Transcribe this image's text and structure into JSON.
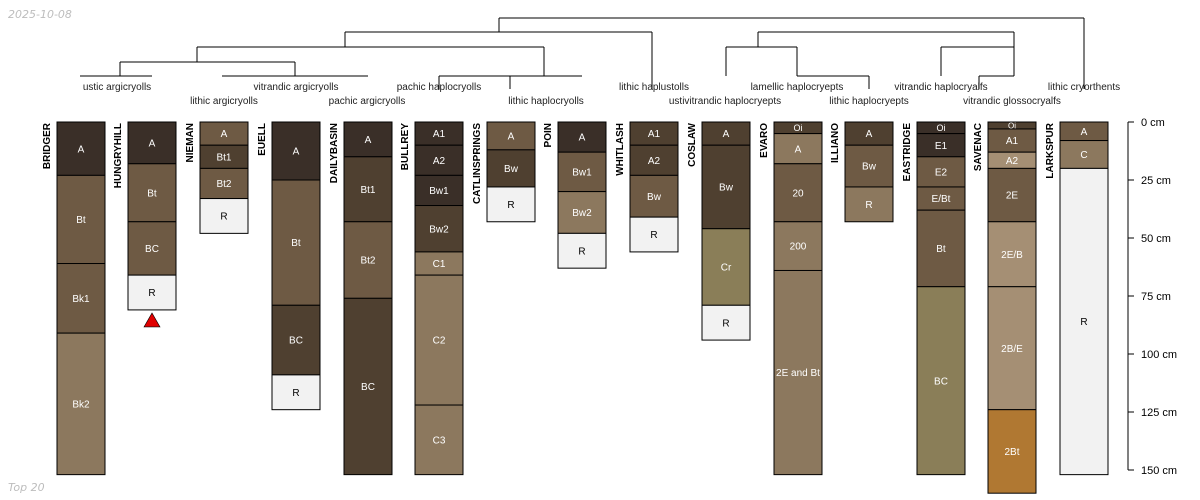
{
  "header": {
    "date": "2025-10-08"
  },
  "footer": {
    "label": "Top 20"
  },
  "colors": {
    "dark": "#3a2f28",
    "darkbrown": "#4f4030",
    "medbrown": "#6e5a44",
    "tan": "#8c785e",
    "lighttan": "#a58f74",
    "olive": "#8a7e58",
    "orange": "#b07832",
    "rock": "#f2f2f2"
  },
  "depth_axis": {
    "unit": "cm",
    "max": 150,
    "ticks": [
      {
        "value": 0,
        "label": "0 cm"
      },
      {
        "value": 25,
        "label": "25 cm"
      },
      {
        "value": 50,
        "label": "50 cm"
      },
      {
        "value": 75,
        "label": "75 cm"
      },
      {
        "value": 100,
        "label": "100 cm"
      },
      {
        "value": 125,
        "label": "125 cm"
      },
      {
        "value": 150,
        "label": "150 cm"
      }
    ]
  },
  "taxa": [
    {
      "text": "ustic argicryolls"
    },
    {
      "text": "lithic argicryolls"
    },
    {
      "text": "vitrandic argicryolls"
    },
    {
      "text": "pachic argicryolls"
    },
    {
      "text": "pachic haplocryolls"
    },
    {
      "text": "lithic haplocryolls"
    },
    {
      "text": "lithic haplustolls"
    },
    {
      "text": "ustivitrandic haplocryepts"
    },
    {
      "text": "lamellic haplocryepts"
    },
    {
      "text": "lithic haplocryepts"
    },
    {
      "text": "vitrandic haplocryalfs"
    },
    {
      "text": "vitrandic glossocryalfs"
    },
    {
      "text": "lithic cryorthents"
    }
  ],
  "profiles": [
    {
      "name": "BRIDGER",
      "horizons": [
        {
          "name": "A",
          "top": 0,
          "bottom": 23,
          "color": "#3a2f28"
        },
        {
          "name": "Bt",
          "top": 23,
          "bottom": 61,
          "color": "#6e5a44"
        },
        {
          "name": "Bk1",
          "top": 61,
          "bottom": 91,
          "color": "#6e5a44"
        },
        {
          "name": "Bk2",
          "top": 91,
          "bottom": 152,
          "color": "#8c785e"
        }
      ]
    },
    {
      "name": "HUNGRYHILL",
      "marker": true,
      "horizons": [
        {
          "name": "A",
          "top": 0,
          "bottom": 18,
          "color": "#3a2f28"
        },
        {
          "name": "Bt",
          "top": 18,
          "bottom": 43,
          "color": "#6e5a44"
        },
        {
          "name": "BC",
          "top": 43,
          "bottom": 66,
          "color": "#6e5a44"
        },
        {
          "name": "R",
          "top": 66,
          "bottom": 81,
          "color": "#f2f2f2"
        }
      ]
    },
    {
      "name": "NIEMAN",
      "horizons": [
        {
          "name": "A",
          "top": 0,
          "bottom": 10,
          "color": "#6e5a44"
        },
        {
          "name": "Bt1",
          "top": 10,
          "bottom": 20,
          "color": "#4f4030"
        },
        {
          "name": "Bt2",
          "top": 20,
          "bottom": 33,
          "color": "#6e5a44"
        },
        {
          "name": "R",
          "top": 33,
          "bottom": 48,
          "color": "#f2f2f2"
        }
      ]
    },
    {
      "name": "EUELL",
      "horizons": [
        {
          "name": "A",
          "top": 0,
          "bottom": 25,
          "color": "#3a2f28"
        },
        {
          "name": "Bt",
          "top": 25,
          "bottom": 79,
          "color": "#6e5a44"
        },
        {
          "name": "BC",
          "top": 79,
          "bottom": 109,
          "color": "#4f4030"
        },
        {
          "name": "R",
          "top": 109,
          "bottom": 124,
          "color": "#f2f2f2"
        }
      ]
    },
    {
      "name": "DAILYBASIN",
      "horizons": [
        {
          "name": "A",
          "top": 0,
          "bottom": 15,
          "color": "#3a2f28"
        },
        {
          "name": "Bt1",
          "top": 15,
          "bottom": 43,
          "color": "#4f4030"
        },
        {
          "name": "Bt2",
          "top": 43,
          "bottom": 76,
          "color": "#6e5a44"
        },
        {
          "name": "BC",
          "top": 76,
          "bottom": 152,
          "color": "#4f4030"
        }
      ]
    },
    {
      "name": "BULLREY",
      "horizons": [
        {
          "name": "A1",
          "top": 0,
          "bottom": 10,
          "color": "#3a2f28"
        },
        {
          "name": "A2",
          "top": 10,
          "bottom": 23,
          "color": "#3a2f28"
        },
        {
          "name": "Bw1",
          "top": 23,
          "bottom": 36,
          "color": "#3a2f28"
        },
        {
          "name": "Bw2",
          "top": 36,
          "bottom": 56,
          "color": "#4f4030"
        },
        {
          "name": "C1",
          "top": 56,
          "bottom": 66,
          "color": "#8c785e"
        },
        {
          "name": "C2",
          "top": 66,
          "bottom": 122,
          "color": "#8c785e"
        },
        {
          "name": "C3",
          "top": 122,
          "bottom": 152,
          "color": "#8c785e"
        }
      ]
    },
    {
      "name": "CATLINSPRINGS",
      "horizons": [
        {
          "name": "A",
          "top": 0,
          "bottom": 12,
          "color": "#6e5a44"
        },
        {
          "name": "Bw",
          "top": 12,
          "bottom": 28,
          "color": "#4f4030"
        },
        {
          "name": "R",
          "top": 28,
          "bottom": 43,
          "color": "#f2f2f2"
        }
      ]
    },
    {
      "name": "POIN",
      "horizons": [
        {
          "name": "A",
          "top": 0,
          "bottom": 13,
          "color": "#3a2f28"
        },
        {
          "name": "Bw1",
          "top": 13,
          "bottom": 30,
          "color": "#6e5a44"
        },
        {
          "name": "Bw2",
          "top": 30,
          "bottom": 48,
          "color": "#8c785e"
        },
        {
          "name": "R",
          "top": 48,
          "bottom": 63,
          "color": "#f2f2f2"
        }
      ]
    },
    {
      "name": "WHITLASH",
      "horizons": [
        {
          "name": "A1",
          "top": 0,
          "bottom": 10,
          "color": "#4f4030"
        },
        {
          "name": "A2",
          "top": 10,
          "bottom": 23,
          "color": "#4f4030"
        },
        {
          "name": "Bw",
          "top": 23,
          "bottom": 41,
          "color": "#6e5a44"
        },
        {
          "name": "R",
          "top": 41,
          "bottom": 56,
          "color": "#f2f2f2"
        }
      ]
    },
    {
      "name": "COSLAW",
      "horizons": [
        {
          "name": "A",
          "top": 0,
          "bottom": 10,
          "color": "#4f4030"
        },
        {
          "name": "Bw",
          "top": 10,
          "bottom": 46,
          "color": "#4f4030"
        },
        {
          "name": "Cr",
          "top": 46,
          "bottom": 79,
          "color": "#8a7e58"
        },
        {
          "name": "R",
          "top": 79,
          "bottom": 94,
          "color": "#f2f2f2"
        }
      ]
    },
    {
      "name": "EVARO",
      "horizons": [
        {
          "name": "Oi",
          "top": 0,
          "bottom": 5,
          "color": "#4f4030"
        },
        {
          "name": "A",
          "top": 5,
          "bottom": 18,
          "color": "#8c785e"
        },
        {
          "name": "20",
          "top": 18,
          "bottom": 43,
          "color": "#6e5a44"
        },
        {
          "name": "200",
          "top": 43,
          "bottom": 64,
          "color": "#8c785e"
        },
        {
          "name": "2E and Bt",
          "top": 64,
          "bottom": 152,
          "color": "#8c785e"
        }
      ]
    },
    {
      "name": "ILLIANO",
      "horizons": [
        {
          "name": "A",
          "top": 0,
          "bottom": 10,
          "color": "#4f4030"
        },
        {
          "name": "Bw",
          "top": 10,
          "bottom": 28,
          "color": "#6e5a44"
        },
        {
          "name": "R",
          "top": 28,
          "bottom": 43,
          "color": "#8c785e"
        }
      ]
    },
    {
      "name": "EASTRIDGE",
      "horizons": [
        {
          "name": "Oi",
          "top": 0,
          "bottom": 5,
          "color": "#3a2f28"
        },
        {
          "name": "E1",
          "top": 5,
          "bottom": 15,
          "color": "#3a2f28"
        },
        {
          "name": "E2",
          "top": 15,
          "bottom": 28,
          "color": "#6e5a44"
        },
        {
          "name": "E/Bt",
          "top": 28,
          "bottom": 38,
          "color": "#6e5a44"
        },
        {
          "name": "Bt",
          "top": 38,
          "bottom": 71,
          "color": "#6e5a44"
        },
        {
          "name": "BC",
          "top": 71,
          "bottom": 152,
          "color": "#8a7e58"
        }
      ]
    },
    {
      "name": "SAVENAC",
      "horizons": [
        {
          "name": "Oi",
          "top": 0,
          "bottom": 3,
          "color": "#4f4030"
        },
        {
          "name": "A1",
          "top": 3,
          "bottom": 13,
          "color": "#6e5a44"
        },
        {
          "name": "A2",
          "top": 13,
          "bottom": 20,
          "color": "#a58f74"
        },
        {
          "name": "2E",
          "top": 20,
          "bottom": 43,
          "color": "#6e5a44"
        },
        {
          "name": "2E/B",
          "top": 43,
          "bottom": 71,
          "color": "#a58f74"
        },
        {
          "name": "2B/E",
          "top": 71,
          "bottom": 124,
          "color": "#a58f74"
        },
        {
          "name": "2Bt",
          "top": 124,
          "bottom": 160,
          "color": "#b07832"
        }
      ]
    },
    {
      "name": "LARKSPUR",
      "horizons": [
        {
          "name": "A",
          "top": 0,
          "bottom": 8,
          "color": "#6e5a44"
        },
        {
          "name": "C",
          "top": 8,
          "bottom": 20,
          "color": "#8c785e"
        },
        {
          "name": "R",
          "top": 20,
          "bottom": 152,
          "color": "#f2f2f2"
        }
      ]
    }
  ]
}
